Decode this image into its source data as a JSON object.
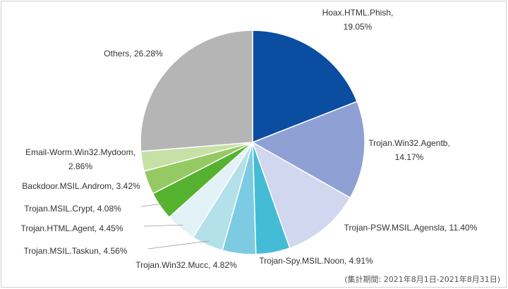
{
  "chart_data": {
    "type": "pie",
    "start_angle_deg": 0,
    "direction": "clockwise",
    "slices": [
      {
        "label": "Hoax.HTML.Phish",
        "value": 19.05,
        "display": "19.05%",
        "color": "#0a4da1"
      },
      {
        "label": "Trojan.Win32.Agentb",
        "value": 14.17,
        "display": "14.17%",
        "color": "#8ea0d4"
      },
      {
        "label": "Trojan-PSW.MSIL.Agensla",
        "value": 11.4,
        "display": "11.40%",
        "color": "#d0d7ee"
      },
      {
        "label": "Trojan-Spy.MSIL.Noon",
        "value": 4.91,
        "display": "4.91%",
        "color": "#45bcd6"
      },
      {
        "label": "Trojan.Win32.Mucc",
        "value": 4.82,
        "display": "4.82%",
        "color": "#7ccbe2"
      },
      {
        "label": "Trojan.MSIL.Taskun",
        "value": 4.56,
        "display": "4.56%",
        "color": "#b4e0ea"
      },
      {
        "label": "Trojan.HTML.Agent",
        "value": 4.45,
        "display": "4.45%",
        "color": "#e2f2f7"
      },
      {
        "label": "Trojan.MSIL.Crypt",
        "value": 4.08,
        "display": "4.08%",
        "color": "#55b22f"
      },
      {
        "label": "Backdoor.MSIL.Androm",
        "value": 3.42,
        "display": "3.42%",
        "color": "#95ca63"
      },
      {
        "label": "Email-Worm.Win32.Mydoom",
        "value": 2.86,
        "display": "2.86%",
        "color": "#c6e0a6"
      },
      {
        "label": "Others",
        "value": 26.28,
        "display": "26.28%",
        "color": "#b5b5b5"
      }
    ],
    "legend": "none",
    "footnote": "(集計期間: 2021年8月1日-2021年8月31日)"
  }
}
